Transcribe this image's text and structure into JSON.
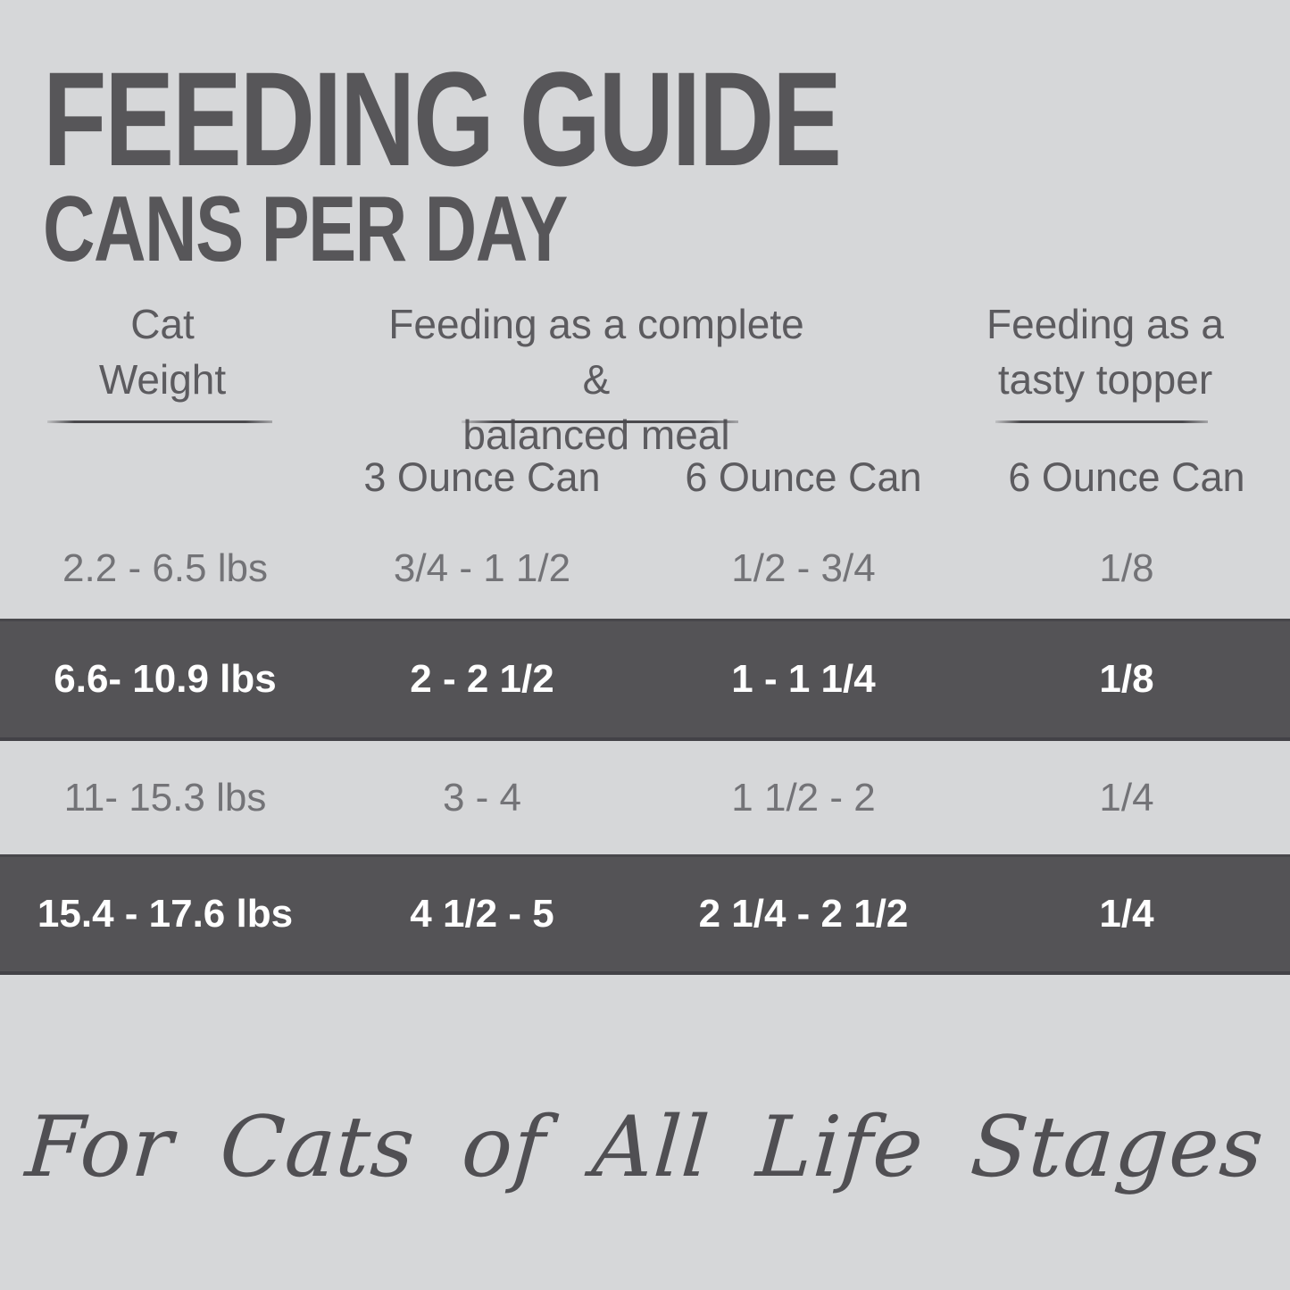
{
  "header": {
    "title": "FEEDING GUIDE",
    "subtitle": "CANS PER DAY"
  },
  "table": {
    "groups": [
      {
        "line1": "Cat",
        "line2": "Weight"
      },
      {
        "line1": "Feeding as a complete &",
        "line2": "balanced meal"
      },
      {
        "line1": "Feeding as a",
        "line2": "tasty topper"
      }
    ],
    "can_headers": [
      "3 Ounce Can",
      "6 Ounce Can",
      "6 Ounce Can"
    ],
    "rows": [
      {
        "weight": "2.2 - 6.5 lbs",
        "complete_3oz": "3/4 - 1 1/2",
        "complete_6oz": "1/2 - 3/4",
        "topper_6oz": "1/8",
        "highlighted": false
      },
      {
        "weight": "6.6- 10.9 lbs",
        "complete_3oz": "2 - 2 1/2",
        "complete_6oz": "1 - 1 1/4",
        "topper_6oz": "1/8",
        "highlighted": true
      },
      {
        "weight": "11- 15.3 lbs",
        "complete_3oz": "3 - 4",
        "complete_6oz": "1 1/2 - 2",
        "topper_6oz": "1/4",
        "highlighted": false
      },
      {
        "weight": "15.4 - 17.6 lbs",
        "complete_3oz": "4 1/2 - 5",
        "complete_6oz": "2 1/4 - 2 1/2",
        "topper_6oz": "1/4",
        "highlighted": true
      }
    ]
  },
  "footer": {
    "tagline": "For Cats of All Life Stages"
  },
  "colors": {
    "background": "#d6d7d9",
    "highlight_band": "#545356",
    "title_text": "#575659",
    "header_text": "#5c5b5f",
    "light_row_text": "#737377",
    "band_text": "#ffffff",
    "tagline_text": "#504f53"
  },
  "chart_data": {
    "type": "table",
    "title": "FEEDING GUIDE",
    "subtitle": "CANS PER DAY",
    "column_groups": [
      "Cat Weight",
      "Feeding as a complete & balanced meal",
      "Feeding as a tasty topper"
    ],
    "columns": [
      "Cat Weight",
      "Complete & balanced meal - 3 Ounce Can",
      "Complete & balanced meal - 6 Ounce Can",
      "Tasty topper - 6 Ounce Can"
    ],
    "rows": [
      [
        "2.2 - 6.5 lbs",
        "3/4 - 1 1/2",
        "1/2 - 3/4",
        "1/8"
      ],
      [
        "6.6- 10.9 lbs",
        "2 - 2 1/2",
        "1 - 1 1/4",
        "1/8"
      ],
      [
        "11- 15.3 lbs",
        "3 - 4",
        "1 1/2 - 2",
        "1/4"
      ],
      [
        "15.4 - 17.6 lbs",
        "4 1/2 - 5",
        "2 1/4 - 2 1/2",
        "1/4"
      ]
    ],
    "highlighted_rows": [
      1,
      3
    ],
    "footnote": "For Cats of All Life Stages",
    "legend_position": "none",
    "grid": false
  }
}
